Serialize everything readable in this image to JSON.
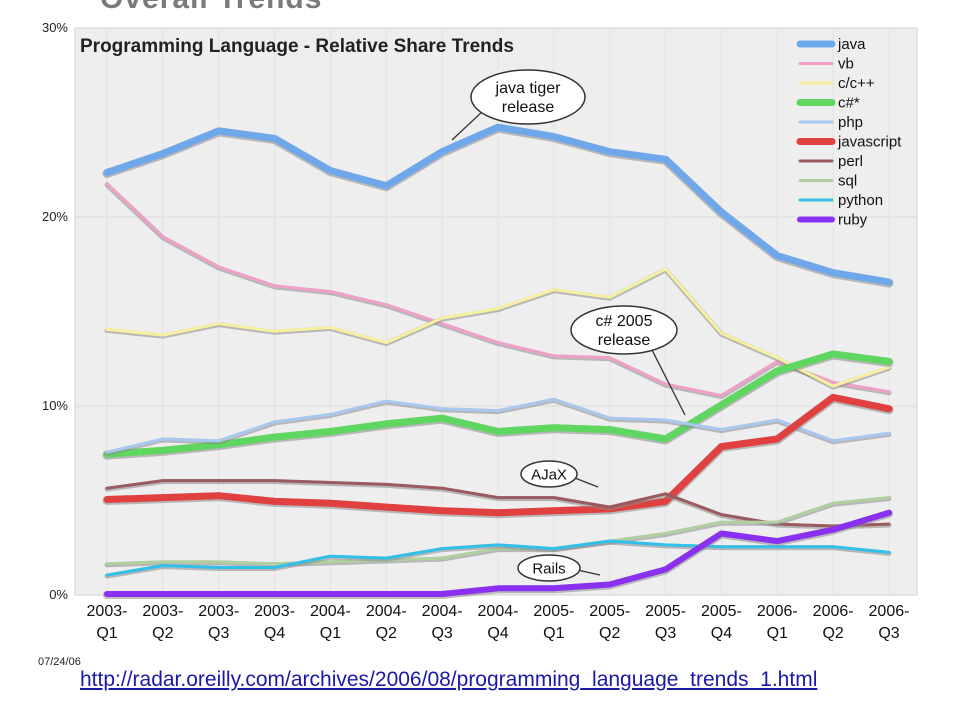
{
  "slide": {
    "heading_fragment": "Overall Trends",
    "source_link": "http://radar.oreilly.com/archives/2006/08/programming_language_trends_1.html",
    "date_stamp": "07/24/06"
  },
  "chart_data": {
    "type": "line",
    "title": "Programming Language - Relative Share Trends",
    "xlabel": "",
    "ylabel": "",
    "ylim": [
      0,
      30
    ],
    "y_ticks": [
      "0%",
      "10%",
      "20%",
      "30%"
    ],
    "categories": [
      "2003-\nQ1",
      "2003-\nQ2",
      "2003-\nQ3",
      "2003-\nQ4",
      "2004-\nQ1",
      "2004-\nQ2",
      "2004-\nQ3",
      "2004-\nQ4",
      "2005-\nQ1",
      "2005-\nQ2",
      "2005-\nQ3",
      "2005-\nQ4",
      "2006-\nQ1",
      "2006-\nQ2",
      "2006-\nQ3"
    ],
    "legend_position": "top-right",
    "grid": true,
    "series": [
      {
        "name": "java",
        "color": "#6fa8ea",
        "width": 7,
        "values": [
          22.3,
          23.3,
          24.5,
          24.1,
          22.4,
          21.6,
          23.4,
          24.7,
          24.2,
          23.4,
          23.0,
          20.2,
          17.9,
          17.0,
          16.5
        ]
      },
      {
        "name": "vb",
        "color": "#f0a0c8",
        "width": 3,
        "values": [
          21.7,
          18.9,
          17.3,
          16.3,
          16.0,
          15.3,
          14.3,
          13.3,
          12.6,
          12.5,
          11.1,
          10.5,
          12.3,
          11.2,
          10.7
        ]
      },
      {
        "name": "c/c++",
        "color": "#f6f0a0",
        "width": 3,
        "values": [
          14.0,
          13.7,
          14.3,
          13.9,
          14.1,
          13.3,
          14.6,
          15.1,
          16.1,
          15.7,
          17.2,
          13.8,
          12.5,
          11.0,
          12.0
        ]
      },
      {
        "name": "c#*",
        "color": "#5fd65f",
        "width": 7,
        "values": [
          7.4,
          7.6,
          7.9,
          8.3,
          8.6,
          9.0,
          9.3,
          8.6,
          8.8,
          8.7,
          8.2,
          10.0,
          11.8,
          12.7,
          12.3
        ]
      },
      {
        "name": "php",
        "color": "#a8c8f0",
        "width": 3,
        "values": [
          7.5,
          8.2,
          8.1,
          9.1,
          9.5,
          10.2,
          9.8,
          9.7,
          10.3,
          9.3,
          9.2,
          8.7,
          9.2,
          8.1,
          8.5
        ]
      },
      {
        "name": "javascript",
        "color": "#e04040",
        "width": 7,
        "values": [
          5.0,
          5.1,
          5.2,
          4.9,
          4.8,
          4.6,
          4.4,
          4.3,
          4.4,
          4.5,
          4.9,
          7.8,
          8.2,
          10.4,
          9.8
        ]
      },
      {
        "name": "perl",
        "color": "#9a5a5e",
        "width": 3,
        "values": [
          5.6,
          6.0,
          6.0,
          6.0,
          5.9,
          5.8,
          5.6,
          5.1,
          5.1,
          4.6,
          5.3,
          4.2,
          3.7,
          3.6,
          3.7
        ]
      },
      {
        "name": "sql",
        "color": "#b0d0a0",
        "width": 3,
        "values": [
          1.6,
          1.7,
          1.7,
          1.6,
          1.7,
          1.8,
          1.9,
          2.4,
          2.4,
          2.8,
          3.2,
          3.8,
          3.8,
          4.8,
          5.1
        ]
      },
      {
        "name": "python",
        "color": "#30c0e8",
        "width": 3,
        "values": [
          1.0,
          1.5,
          1.4,
          1.4,
          2.0,
          1.9,
          2.4,
          2.6,
          2.4,
          2.8,
          2.6,
          2.5,
          2.5,
          2.5,
          2.2
        ]
      },
      {
        "name": "ruby",
        "color": "#8a30f0",
        "width": 6,
        "values": [
          0.0,
          0.0,
          0.0,
          0.0,
          0.0,
          0.0,
          0.0,
          0.3,
          0.3,
          0.5,
          1.3,
          3.2,
          2.8,
          3.4,
          4.3
        ]
      }
    ],
    "annotations": [
      {
        "text": "java tiger\nrelease",
        "category_index": 6,
        "value": 23.4
      },
      {
        "text": "c# 2005\nrelease",
        "category_index": 10,
        "value": 9.3
      },
      {
        "text": "AJaX",
        "category_index": 11,
        "value": 5.5
      },
      {
        "text": "Rails",
        "category_index": 8,
        "value": 1.1
      }
    ]
  }
}
